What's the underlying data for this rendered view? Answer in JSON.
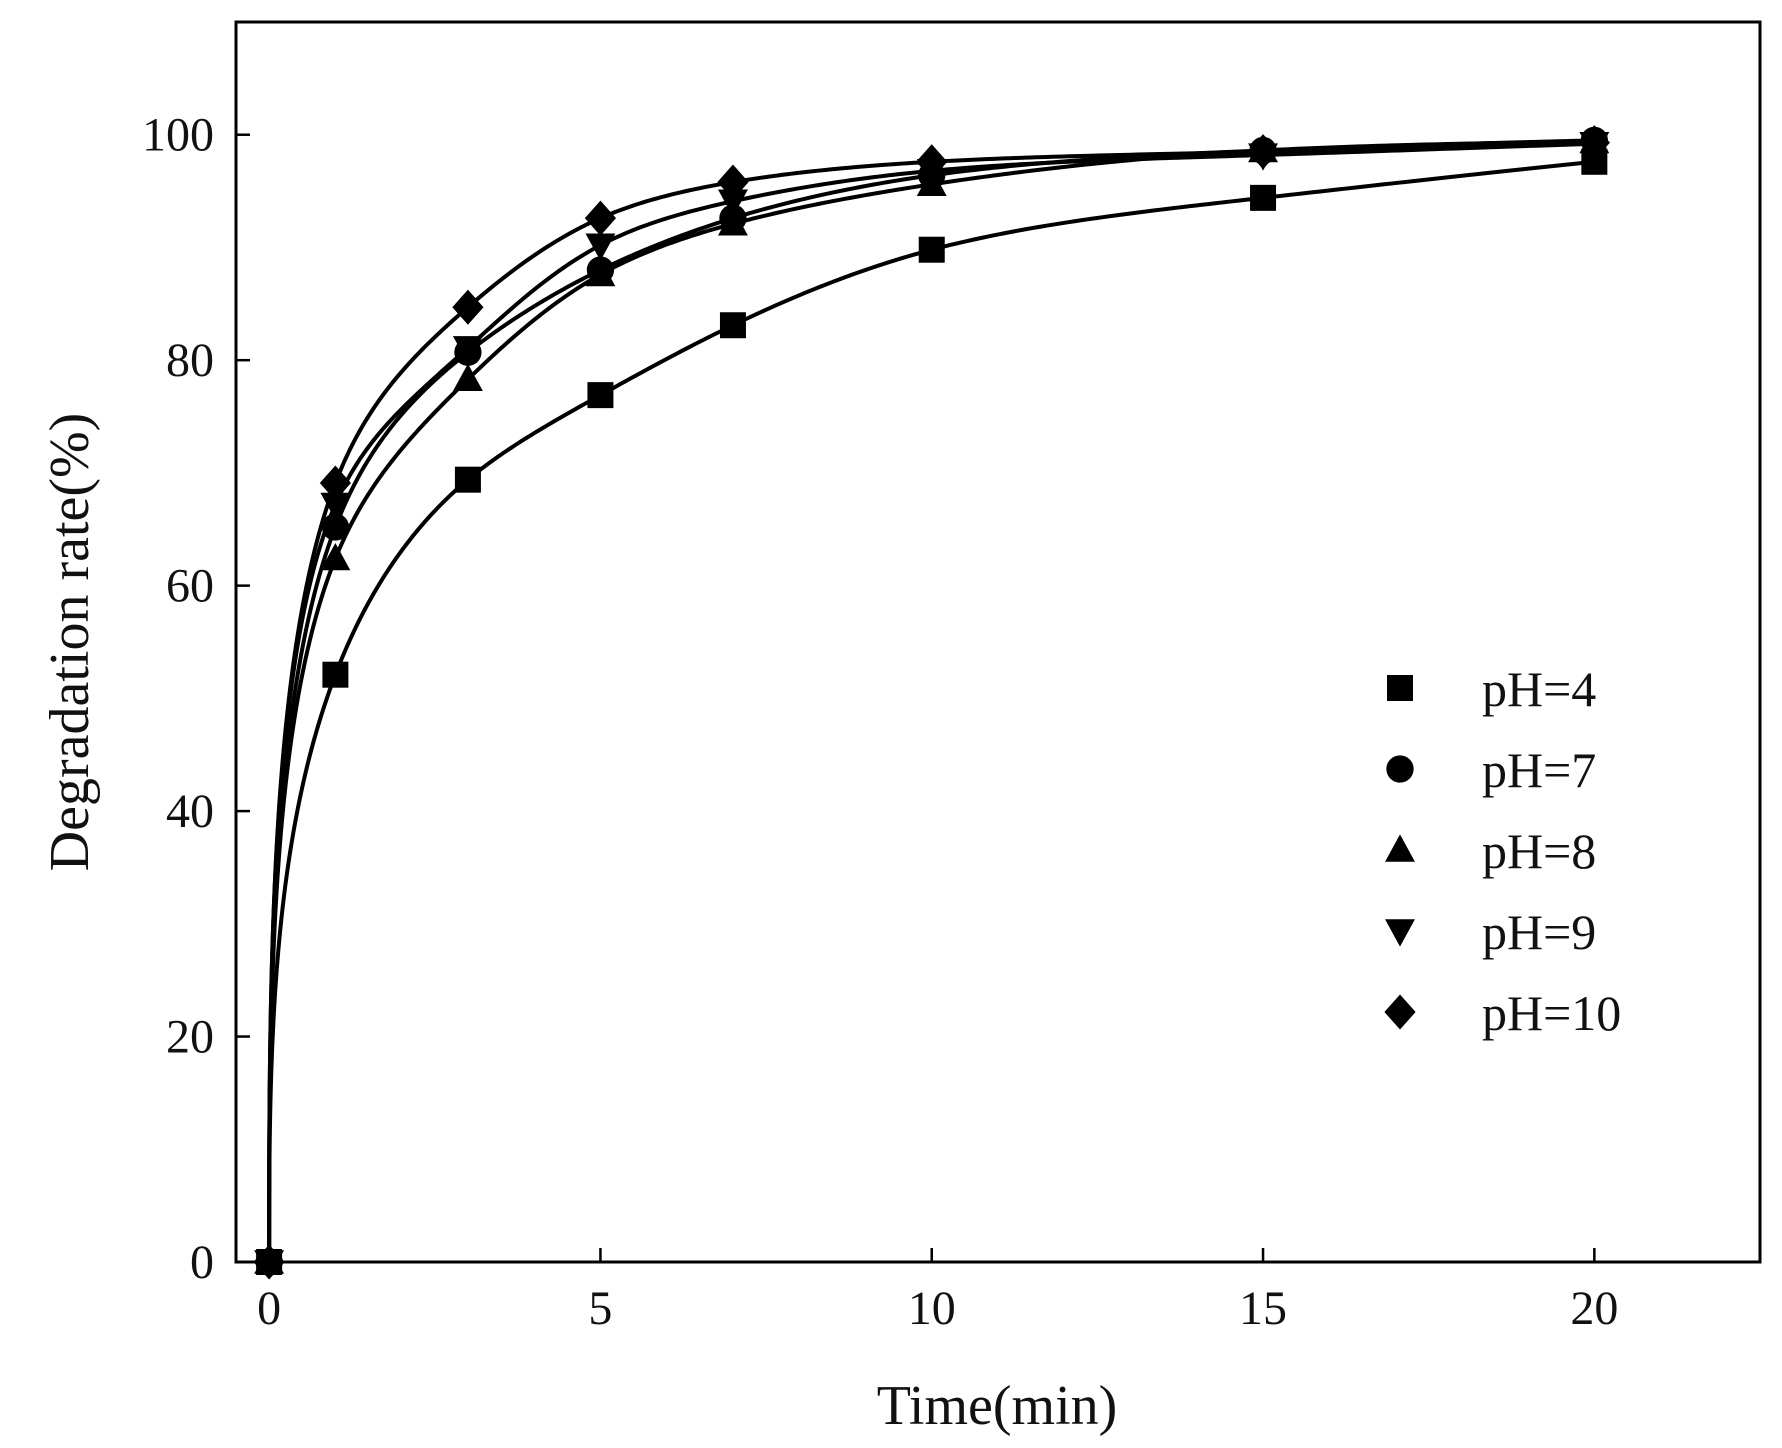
{
  "chart_data": {
    "type": "scatter",
    "title": "",
    "xlabel": "Time(min)",
    "ylabel": "Degradation rate(%)",
    "xlim": [
      -0.5,
      22.5
    ],
    "ylim": [
      0,
      110
    ],
    "xticks": [
      0,
      5,
      10,
      15,
      20
    ],
    "yticks": [
      0,
      20,
      40,
      60,
      80,
      100
    ],
    "grid": false,
    "legend_position": "right",
    "colors": {
      "series": "#000000",
      "axes": "#000000"
    },
    "x": [
      0,
      1,
      3,
      5,
      7,
      10,
      15,
      20
    ],
    "series": [
      {
        "name": "pH=4",
        "marker": "square",
        "values": [
          0,
          52.1,
          69.4,
          76.9,
          83.1,
          89.8,
          94.4,
          97.6
        ]
      },
      {
        "name": "pH=7",
        "marker": "circle",
        "values": [
          0,
          65.2,
          80.7,
          88.0,
          92.6,
          96.4,
          98.6,
          99.5
        ]
      },
      {
        "name": "pH=8",
        "marker": "triangle-up",
        "values": [
          0,
          62.4,
          78.3,
          87.6,
          92.1,
          95.6,
          98.6,
          99.4
        ]
      },
      {
        "name": "pH=9",
        "marker": "triangle-down",
        "values": [
          0,
          67.2,
          81.1,
          90.2,
          94.1,
          96.8,
          98.2,
          99.2
        ]
      },
      {
        "name": "pH=10",
        "marker": "diamond",
        "values": [
          0,
          69.1,
          84.7,
          92.6,
          95.8,
          97.6,
          98.5,
          99.3
        ]
      }
    ]
  }
}
